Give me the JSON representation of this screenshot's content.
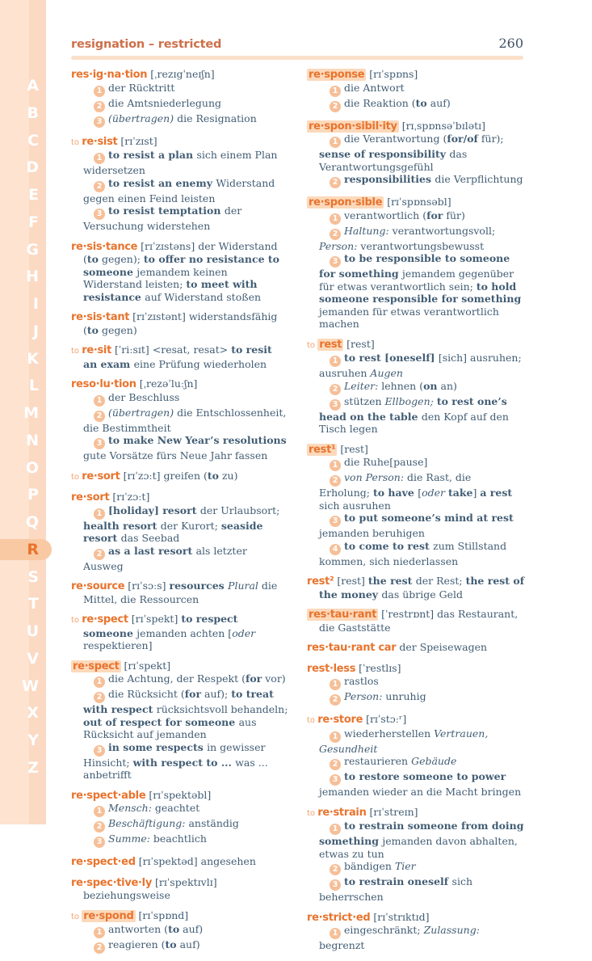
{
  "page": {
    "header_title": "resignation – restricted",
    "page_number": "260"
  },
  "colors": {
    "accent_orange": "#e8742e",
    "header_orange": "#cd7049",
    "body_text": "#425d74",
    "highlight_bg": "#fcd9bb",
    "sidebar_bg": "#fde3d0",
    "sidebar_band": "#fbd9c3",
    "active_tab_bg": "#f9c9a3",
    "badge_bg": "#f6bf98",
    "rule_color": "#fbe0ca"
  },
  "sidebar": {
    "letters": [
      "A",
      "B",
      "C",
      "D",
      "E",
      "F",
      "G",
      "H",
      "I",
      "J",
      "K",
      "L",
      "M",
      "N",
      "O",
      "P",
      "Q",
      "R",
      "S",
      "T",
      "U",
      "V",
      "W",
      "X",
      "Y",
      "Z"
    ],
    "active_letter": "R"
  },
  "columns": {
    "left": [
      {
        "headword": "res·ig·na·tion",
        "highlight": false,
        "phonetic": "[ˌrezɪgˈneɪʃn]",
        "senses": [
          [
            {
              "t": "der Rücktritt"
            }
          ],
          [
            {
              "t": "die Amtsniederlegung"
            }
          ],
          [
            {
              "i": "(übertragen)"
            },
            {
              "t": " die Resignation"
            }
          ]
        ]
      },
      {
        "prefix": "to",
        "headword": "re·sist",
        "highlight": false,
        "phonetic": "[rɪˈzɪst]",
        "senses": [
          [
            {
              "b": "to resist a plan "
            },
            {
              "t": "sich einem Plan widersetzen"
            }
          ],
          [
            {
              "b": "to resist an enemy "
            },
            {
              "t": "Widerstand gegen einen Feind leisten"
            }
          ],
          [
            {
              "b": "to resist temptation "
            },
            {
              "t": "der Versuchung widerstehen"
            }
          ]
        ]
      },
      {
        "headword": "re·sis·tance",
        "highlight": false,
        "phonetic": "[rɪˈzɪstəns]",
        "inline": [
          {
            "t": "der Widerstand ("
          },
          {
            "b": "to"
          },
          {
            "t": " gegen); "
          },
          {
            "b": "to offer no resistance to someone "
          },
          {
            "t": "jemandem keinen Widerstand leisten; "
          },
          {
            "b": "to meet with resistance "
          },
          {
            "t": "auf Widerstand stoßen"
          }
        ]
      },
      {
        "headword": "re·sis·tant",
        "highlight": false,
        "phonetic": "[rɪˈzɪstənt]",
        "inline": [
          {
            "t": "widerstandsfähig ("
          },
          {
            "b": "to"
          },
          {
            "t": " gegen)"
          }
        ]
      },
      {
        "prefix": "to",
        "headword": "re·sit",
        "highlight": false,
        "phonetic": "[ˈriːsɪt]",
        "inline": [
          {
            "t": "<resat, resat> "
          },
          {
            "b": "to resit an exam "
          },
          {
            "t": "eine Prüfung wiederholen"
          }
        ]
      },
      {
        "headword": "reso·lu·tion",
        "highlight": false,
        "phonetic": "[ˌrezəˈluːʃn]",
        "senses": [
          [
            {
              "t": "der Beschluss"
            }
          ],
          [
            {
              "i": "(übertragen)"
            },
            {
              "t": " die Entschlossenheit, die Bestimmtheit"
            }
          ],
          [
            {
              "b": "to make New Year’s resolutions "
            },
            {
              "t": "gute Vorsätze fürs Neue Jahr fassen"
            }
          ]
        ]
      },
      {
        "prefix": "to",
        "headword": "re·sort",
        "highlight": false,
        "phonetic": "[rɪˈzɔːt]",
        "inline": [
          {
            "t": "greifen ("
          },
          {
            "b": "to"
          },
          {
            "t": " zu)"
          }
        ]
      },
      {
        "headword": "re·sort",
        "highlight": false,
        "phonetic": "[rɪˈzɔːt]",
        "senses": [
          [
            {
              "b": "[holiday] resort "
            },
            {
              "t": "der Urlaubsort; "
            },
            {
              "b": "health resort "
            },
            {
              "t": "der Kurort; "
            },
            {
              "b": "seaside resort "
            },
            {
              "t": "das Seebad"
            }
          ],
          [
            {
              "b": "as a last resort "
            },
            {
              "t": "als letzter Ausweg"
            }
          ]
        ]
      },
      {
        "headword": "re·source",
        "highlight": false,
        "phonetic": "[rɪˈsɔːs]",
        "inline": [
          {
            "b": "resources "
          },
          {
            "i": "Plural "
          },
          {
            "t": "die Mittel, die Ressourcen"
          }
        ]
      },
      {
        "prefix": "to",
        "headword": "re·spect",
        "highlight": false,
        "phonetic": "[rɪˈspekt]",
        "inline": [
          {
            "b": "to respect someone "
          },
          {
            "t": "jemanden achten ["
          },
          {
            "i": "oder"
          },
          {
            "t": " respektieren]"
          }
        ]
      },
      {
        "headword": "re·spect",
        "highlight": true,
        "phonetic": "[rɪˈspekt]",
        "senses": [
          [
            {
              "t": "die Achtung, der Respekt ("
            },
            {
              "b": "for"
            },
            {
              "t": " vor)"
            }
          ],
          [
            {
              "t": "die Rücksicht ("
            },
            {
              "b": "for"
            },
            {
              "t": " auf); "
            },
            {
              "b": "to treat with respect "
            },
            {
              "t": "rücksichtsvoll behandeln; "
            },
            {
              "b": "out of respect for someone "
            },
            {
              "t": "aus Rücksicht auf jemanden"
            }
          ],
          [
            {
              "b": "in some respects "
            },
            {
              "t": "in gewisser Hinsicht; "
            },
            {
              "b": "with respect to ... "
            },
            {
              "t": "was ... anbetrifft"
            }
          ]
        ]
      },
      {
        "headword": "re·spect·able",
        "highlight": false,
        "phonetic": "[rɪˈspektəbl]",
        "senses": [
          [
            {
              "i": "Mensch: "
            },
            {
              "t": "geachtet"
            }
          ],
          [
            {
              "i": "Beschäftigung: "
            },
            {
              "t": "anständig"
            }
          ],
          [
            {
              "i": "Summe: "
            },
            {
              "t": "beachtlich"
            }
          ]
        ]
      },
      {
        "headword": "re·spect·ed",
        "highlight": false,
        "phonetic": "[rɪˈspektəd]",
        "inline": [
          {
            "t": "angesehen"
          }
        ]
      },
      {
        "headword": "re·spec·tive·ly",
        "highlight": false,
        "phonetic": "[rɪˈspektɪvlɪ]",
        "inline": [
          {
            "t": "beziehungsweise"
          }
        ]
      },
      {
        "prefix": "to",
        "headword": "re·spond",
        "highlight": true,
        "phonetic": "[rɪˈspɒnd]",
        "senses": [
          [
            {
              "t": "antworten ("
            },
            {
              "b": "to"
            },
            {
              "t": " auf)"
            }
          ],
          [
            {
              "t": "reagieren ("
            },
            {
              "b": "to"
            },
            {
              "t": " auf)"
            }
          ]
        ]
      }
    ],
    "right": [
      {
        "headword": "re·sponse",
        "highlight": true,
        "phonetic": "[rɪˈspɒns]",
        "senses": [
          [
            {
              "t": "die Antwort"
            }
          ],
          [
            {
              "t": "die Reaktion ("
            },
            {
              "b": "to"
            },
            {
              "t": " auf)"
            }
          ]
        ]
      },
      {
        "headword": "re·spon·sibil·ity",
        "highlight": true,
        "phonetic": "[rɪˌspɒnsəˈbɪlətɪ]",
        "senses": [
          [
            {
              "t": "die Verantwortung ("
            },
            {
              "b": "for/of"
            },
            {
              "t": " für); "
            },
            {
              "b": "sense of responsibility "
            },
            {
              "t": "das Verantwortungsgefühl"
            }
          ],
          [
            {
              "b": "responsibilities "
            },
            {
              "t": "die Verpflichtung"
            }
          ]
        ]
      },
      {
        "headword": "re·spon·sible",
        "highlight": true,
        "phonetic": "[rɪˈspɒnsəbl]",
        "senses": [
          [
            {
              "t": "verantwortlich ("
            },
            {
              "b": "for"
            },
            {
              "t": " für)"
            }
          ],
          [
            {
              "i": "Haltung: "
            },
            {
              "t": "verantwortungsvoll; "
            },
            {
              "i": "Person: "
            },
            {
              "t": "verantwortungsbewusst"
            }
          ],
          [
            {
              "b": "to be responsible to someone for something "
            },
            {
              "t": "jemandem gegenüber für etwas verantwortlich sein; "
            },
            {
              "b": "to hold someone responsible for something "
            },
            {
              "t": "jemanden für etwas verantwortlich machen"
            }
          ]
        ]
      },
      {
        "prefix": "to",
        "headword": "rest",
        "highlight": true,
        "phonetic": "[rest]",
        "senses": [
          [
            {
              "b": "to rest [oneself] "
            },
            {
              "t": "[sich] ausruhen; ausruhen "
            },
            {
              "i": "Augen"
            }
          ],
          [
            {
              "i": "Leiter: "
            },
            {
              "t": "lehnen ("
            },
            {
              "b": "on"
            },
            {
              "t": " an)"
            }
          ],
          [
            {
              "t": "stützen "
            },
            {
              "i": "Ellbogen; "
            },
            {
              "b": "to rest one’s head on the table "
            },
            {
              "t": "den Kopf auf den Tisch legen"
            }
          ]
        ]
      },
      {
        "headword": "rest¹",
        "highlight": true,
        "phonetic": "[rest]",
        "senses": [
          [
            {
              "t": "die Ruhe[pause]"
            }
          ],
          [
            {
              "i": "von Person: "
            },
            {
              "t": "die Rast, die Erholung; "
            },
            {
              "b": "to have "
            },
            {
              "t": "["
            },
            {
              "i": "oder"
            },
            {
              "t": " "
            },
            {
              "b": "take"
            },
            {
              "t": "] "
            },
            {
              "b": "a rest "
            },
            {
              "t": "sich ausruhen"
            }
          ],
          [
            {
              "b": "to put someone’s mind at rest "
            },
            {
              "t": "jemanden beruhigen"
            }
          ],
          [
            {
              "b": "to come to rest "
            },
            {
              "t": "zum Stillstand kommen, sich niederlassen"
            }
          ]
        ]
      },
      {
        "headword": "rest²",
        "highlight": false,
        "phonetic": "[rest]",
        "inline": [
          {
            "b": "the rest "
          },
          {
            "t": "der Rest; "
          },
          {
            "b": "the rest of the money "
          },
          {
            "t": "das übrige Geld"
          }
        ]
      },
      {
        "headword": "res·tau·rant",
        "highlight": true,
        "phonetic": "[ˈrestrɒnt]",
        "inline": [
          {
            "t": "das Restaurant, die Gaststätte"
          }
        ]
      },
      {
        "headword": "res·tau·rant car",
        "highlight": false,
        "inline": [
          {
            "t": "der Speisewagen"
          }
        ]
      },
      {
        "headword": "rest·less",
        "highlight": false,
        "phonetic": "[ˈrestlɪs]",
        "senses": [
          [
            {
              "t": "rastlos"
            }
          ],
          [
            {
              "i": "Person: "
            },
            {
              "t": "unruhig"
            }
          ]
        ]
      },
      {
        "prefix": "to",
        "headword": "re·store",
        "highlight": false,
        "phonetic": "[rɪˈstɔːʳ]",
        "senses": [
          [
            {
              "t": "wiederherstellen "
            },
            {
              "i": "Vertrauen, Gesundheit"
            }
          ],
          [
            {
              "t": "restaurieren "
            },
            {
              "i": "Gebäude"
            }
          ],
          [
            {
              "b": "to restore someone to power "
            },
            {
              "t": "jemanden wieder an die Macht bringen"
            }
          ]
        ]
      },
      {
        "prefix": "to",
        "headword": "re·strain",
        "highlight": false,
        "phonetic": "[rɪˈstreɪn]",
        "senses": [
          [
            {
              "b": "to restrain someone from doing something "
            },
            {
              "t": "jemanden davon abhalten, etwas zu tun"
            }
          ],
          [
            {
              "t": "bändigen "
            },
            {
              "i": "Tier"
            }
          ],
          [
            {
              "b": "to restrain oneself "
            },
            {
              "t": "sich beherrschen"
            }
          ]
        ]
      },
      {
        "headword": "re·strict·ed",
        "highlight": false,
        "phonetic": "[rɪˈstrɪktɪd]",
        "senses": [
          [
            {
              "t": "eingeschränkt; "
            },
            {
              "i": "Zulassung: "
            },
            {
              "t": "begrenzt"
            }
          ]
        ]
      }
    ]
  }
}
